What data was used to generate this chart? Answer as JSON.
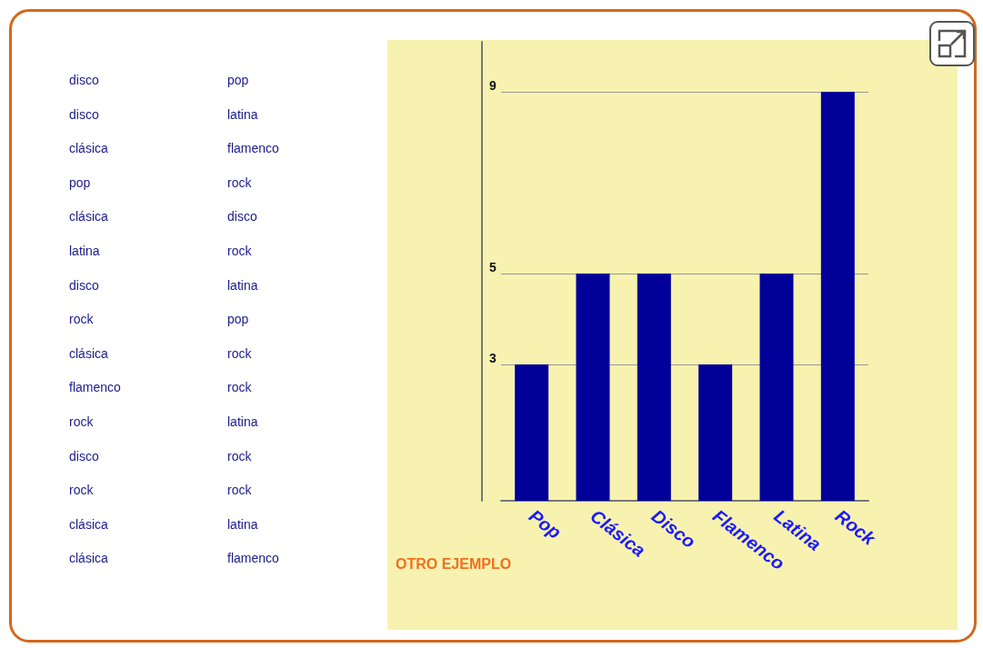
{
  "chart_data": [
    {
      "type": "other",
      "annotations": [
        "disco",
        "pop",
        "disco",
        "latina",
        "clásica",
        "flamenco",
        "pop",
        "rock",
        "clásica",
        "disco",
        "latina",
        "rock",
        "disco",
        "latina",
        "rock",
        "pop",
        "clásica",
        "rock",
        "flamenco",
        "rock",
        "rock",
        "latina",
        "disco",
        "rock",
        "rock",
        "rock",
        "clásica",
        "latina",
        "clásica",
        "flamenco"
      ]
    },
    {
      "type": "bar",
      "categories": [
        "Pop",
        "Clásica",
        "Disco",
        "Flamenco",
        "Latina",
        "Rock"
      ],
      "values": [
        3,
        5,
        5,
        3,
        5,
        9
      ],
      "color": "#000099",
      "ylim": [
        0,
        10.1
      ],
      "yticks": [
        3,
        5,
        9
      ],
      "grid": "y",
      "annotations": [
        "OTRO EJEMPLO"
      ]
    }
  ]
}
